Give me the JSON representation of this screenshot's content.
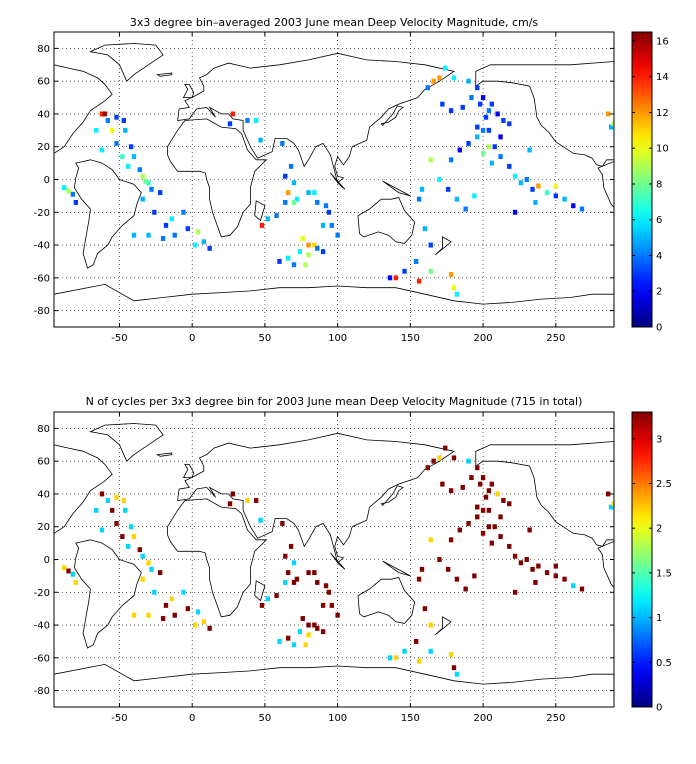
{
  "page": {
    "background": "#ffffff"
  },
  "chart_data": [
    {
      "id": "velocity",
      "type": "heatmap",
      "title": "3x3 degree bin–averaged 2003 June mean Deep Velocity Magnitude, cm/s",
      "xlabel": "",
      "ylabel": "",
      "xlim": [
        -95,
        290
      ],
      "ylim": [
        -90,
        90
      ],
      "x_ticks": [
        -50,
        0,
        50,
        100,
        150,
        200,
        250
      ],
      "y_ticks": [
        -80,
        -60,
        -40,
        -20,
        0,
        20,
        40,
        60,
        80
      ],
      "grid": "dotted",
      "colormap": "jet",
      "colorbar": {
        "min": 0,
        "max": 16.5,
        "ticks": [
          0,
          2,
          4,
          6,
          8,
          10,
          12,
          14,
          16
        ]
      },
      "bin_size_deg": 3,
      "cells": [
        [
          -88,
          -5,
          6
        ],
        [
          -85,
          -7,
          9
        ],
        [
          -82,
          -9,
          4
        ],
        [
          -80,
          -14,
          3
        ],
        [
          -62,
          40,
          14
        ],
        [
          -60,
          40,
          16
        ],
        [
          -58,
          36,
          4
        ],
        [
          -52,
          38,
          3
        ],
        [
          -66,
          30,
          6
        ],
        [
          -55,
          30,
          10
        ],
        [
          -47,
          36,
          3
        ],
        [
          -46,
          30,
          5
        ],
        [
          -62,
          18,
          6
        ],
        [
          -52,
          22,
          4
        ],
        [
          -42,
          20,
          3
        ],
        [
          -48,
          14,
          7
        ],
        [
          -40,
          14,
          5
        ],
        [
          -44,
          8,
          6
        ],
        [
          -36,
          6,
          4
        ],
        [
          -34,
          2,
          9
        ],
        [
          -30,
          -2,
          7
        ],
        [
          -28,
          -6,
          4
        ],
        [
          -22,
          -8,
          3
        ],
        [
          -34,
          -12,
          5
        ],
        [
          -26,
          -20,
          3
        ],
        [
          -18,
          -28,
          3
        ],
        [
          -14,
          -24,
          6
        ],
        [
          -12,
          -34,
          4
        ],
        [
          -20,
          -36,
          4
        ],
        [
          -40,
          -34,
          5
        ],
        [
          -30,
          -34,
          5
        ],
        [
          -6,
          -20,
          4
        ],
        [
          -3,
          -30,
          3
        ],
        [
          2,
          -40,
          6
        ],
        [
          8,
          -38,
          5
        ],
        [
          4,
          -32,
          9
        ],
        [
          12,
          -42,
          3
        ],
        [
          -32,
          -1,
          8
        ],
        [
          28,
          40,
          14
        ],
        [
          26,
          34,
          3
        ],
        [
          38,
          36,
          4
        ],
        [
          44,
          36,
          6
        ],
        [
          47,
          24,
          5
        ],
        [
          62,
          22,
          4
        ],
        [
          64,
          2,
          3
        ],
        [
          68,
          8,
          4
        ],
        [
          70,
          -2,
          5
        ],
        [
          66,
          -8,
          12
        ],
        [
          72,
          -12,
          6
        ],
        [
          48,
          -28,
          14
        ],
        [
          52,
          -24,
          5
        ],
        [
          58,
          -22,
          4
        ],
        [
          64,
          -14,
          4
        ],
        [
          60,
          -50,
          3
        ],
        [
          66,
          -48,
          6
        ],
        [
          70,
          -52,
          4
        ],
        [
          74,
          -44,
          6
        ],
        [
          76,
          -36,
          10
        ],
        [
          80,
          -40,
          12
        ],
        [
          84,
          -40,
          11
        ],
        [
          80,
          -46,
          9
        ],
        [
          86,
          -42,
          4
        ],
        [
          90,
          -44,
          3
        ],
        [
          78,
          -52,
          9
        ],
        [
          80,
          -8,
          5
        ],
        [
          86,
          -14,
          4
        ],
        [
          92,
          -16,
          4
        ],
        [
          94,
          -20,
          3
        ],
        [
          90,
          -28,
          5
        ],
        [
          96,
          -28,
          4
        ],
        [
          100,
          -34,
          4
        ],
        [
          70,
          -14,
          8
        ],
        [
          84,
          -8,
          6
        ],
        [
          136,
          -60,
          2
        ],
        [
          140,
          -60,
          14
        ],
        [
          146,
          -56,
          3
        ],
        [
          156,
          -62,
          14
        ],
        [
          164,
          -56,
          8
        ],
        [
          178,
          -58,
          12
        ],
        [
          180,
          -66,
          10
        ],
        [
          182,
          -70,
          6
        ],
        [
          154,
          -50,
          4
        ],
        [
          164,
          -40,
          3
        ],
        [
          160,
          -30,
          5
        ],
        [
          156,
          -12,
          4
        ],
        [
          158,
          -6,
          5
        ],
        [
          164,
          12,
          9
        ],
        [
          170,
          0,
          6
        ],
        [
          176,
          -6,
          3
        ],
        [
          182,
          -12,
          5
        ],
        [
          188,
          -18,
          4
        ],
        [
          194,
          -10,
          6
        ],
        [
          178,
          12,
          4
        ],
        [
          184,
          18,
          2
        ],
        [
          190,
          22,
          3
        ],
        [
          196,
          26,
          5
        ],
        [
          200,
          30,
          4
        ],
        [
          202,
          38,
          3
        ],
        [
          206,
          46,
          3
        ],
        [
          200,
          50,
          2
        ],
        [
          196,
          56,
          3
        ],
        [
          190,
          60,
          5
        ],
        [
          180,
          62,
          6
        ],
        [
          174,
          68,
          6
        ],
        [
          170,
          62,
          12
        ],
        [
          166,
          60,
          12
        ],
        [
          162,
          56,
          4
        ],
        [
          172,
          46,
          3
        ],
        [
          178,
          42,
          3
        ],
        [
          186,
          44,
          3
        ],
        [
          192,
          50,
          4
        ],
        [
          198,
          46,
          3
        ],
        [
          204,
          42,
          4
        ],
        [
          210,
          40,
          2
        ],
        [
          214,
          36,
          3
        ],
        [
          218,
          34,
          3
        ],
        [
          204,
          30,
          3
        ],
        [
          196,
          32,
          3
        ],
        [
          212,
          26,
          2
        ],
        [
          208,
          20,
          3
        ],
        [
          212,
          14,
          4
        ],
        [
          218,
          8,
          3
        ],
        [
          222,
          2,
          6
        ],
        [
          226,
          -2,
          5
        ],
        [
          230,
          0,
          4
        ],
        [
          234,
          -6,
          3
        ],
        [
          238,
          -4,
          12
        ],
        [
          244,
          -8,
          7
        ],
        [
          236,
          -14,
          5
        ],
        [
          250,
          -10,
          3
        ],
        [
          256,
          -12,
          5
        ],
        [
          262,
          -16,
          2
        ],
        [
          268,
          -18,
          4
        ],
        [
          200,
          16,
          8
        ],
        [
          204,
          20,
          9
        ],
        [
          206,
          10,
          5
        ],
        [
          232,
          18,
          5
        ],
        [
          222,
          -20,
          2
        ],
        [
          250,
          -4,
          10
        ],
        [
          286,
          40,
          12
        ],
        [
          288,
          32,
          5
        ],
        [
          290,
          34,
          9
        ]
      ]
    },
    {
      "id": "cycles",
      "type": "heatmap",
      "title": "N of cycles per 3x3 degree bin for 2003 June mean Deep Velocity Magnitude (715 in total)",
      "xlabel": "",
      "ylabel": "",
      "xlim": [
        -95,
        290
      ],
      "ylim": [
        -90,
        90
      ],
      "x_ticks": [
        -50,
        0,
        50,
        100,
        150,
        200,
        250
      ],
      "y_ticks": [
        -80,
        -60,
        -40,
        -20,
        0,
        20,
        40,
        60,
        80
      ],
      "grid": "dotted",
      "colormap": "jet",
      "colorbar": {
        "min": 0,
        "max": 3.3,
        "ticks": [
          0,
          0.5,
          1,
          1.5,
          2,
          2.5,
          3
        ]
      },
      "bin_size_deg": 3,
      "cells": [
        [
          -88,
          -5,
          2.2
        ],
        [
          -85,
          -7,
          3.3
        ],
        [
          -82,
          -9,
          1.1
        ],
        [
          -80,
          -14,
          2.2
        ],
        [
          -62,
          40,
          3.3
        ],
        [
          -58,
          36,
          1.1
        ],
        [
          -52,
          38,
          2.2
        ],
        [
          -66,
          30,
          1.1
        ],
        [
          -55,
          30,
          3.3
        ],
        [
          -47,
          36,
          2.2
        ],
        [
          -46,
          30,
          1.1
        ],
        [
          -62,
          18,
          1.1
        ],
        [
          -52,
          22,
          3.3
        ],
        [
          -42,
          20,
          1.1
        ],
        [
          -48,
          14,
          3.3
        ],
        [
          -40,
          14,
          2.2
        ],
        [
          -44,
          8,
          1.1
        ],
        [
          -36,
          6,
          3.3
        ],
        [
          -34,
          2,
          1.1
        ],
        [
          -30,
          -2,
          2.2
        ],
        [
          -28,
          -6,
          1.1
        ],
        [
          -22,
          -8,
          3.3
        ],
        [
          -34,
          -12,
          2.2
        ],
        [
          -26,
          -20,
          1.1
        ],
        [
          -18,
          -28,
          3.3
        ],
        [
          -14,
          -24,
          2.2
        ],
        [
          -12,
          -34,
          3.3
        ],
        [
          -20,
          -36,
          3.3
        ],
        [
          -40,
          -34,
          2.2
        ],
        [
          -30,
          -34,
          2.2
        ],
        [
          -6,
          -20,
          1.1
        ],
        [
          -3,
          -30,
          3.3
        ],
        [
          2,
          -40,
          2.2
        ],
        [
          8,
          -38,
          2.2
        ],
        [
          4,
          -32,
          1.1
        ],
        [
          12,
          -42,
          3.3
        ],
        [
          28,
          40,
          3.3
        ],
        [
          26,
          34,
          3.3
        ],
        [
          38,
          36,
          2.2
        ],
        [
          44,
          36,
          3.3
        ],
        [
          47,
          24,
          1.1
        ],
        [
          62,
          22,
          3.3
        ],
        [
          64,
          2,
          3.3
        ],
        [
          68,
          8,
          3.3
        ],
        [
          70,
          -2,
          1.1
        ],
        [
          66,
          -8,
          3.3
        ],
        [
          72,
          -12,
          3.3
        ],
        [
          48,
          -28,
          3.3
        ],
        [
          52,
          -24,
          1.1
        ],
        [
          58,
          -22,
          3.3
        ],
        [
          64,
          -14,
          1.1
        ],
        [
          60,
          -50,
          1.1
        ],
        [
          66,
          -48,
          3.3
        ],
        [
          70,
          -52,
          1.1
        ],
        [
          74,
          -44,
          1.1
        ],
        [
          76,
          -36,
          3.3
        ],
        [
          80,
          -40,
          3.3
        ],
        [
          84,
          -40,
          3.3
        ],
        [
          80,
          -46,
          2.2
        ],
        [
          86,
          -42,
          3.3
        ],
        [
          90,
          -44,
          3.3
        ],
        [
          78,
          -52,
          2.2
        ],
        [
          80,
          -8,
          3.3
        ],
        [
          86,
          -14,
          3.3
        ],
        [
          92,
          -16,
          3.3
        ],
        [
          94,
          -20,
          3.3
        ],
        [
          90,
          -28,
          3.3
        ],
        [
          96,
          -28,
          3.3
        ],
        [
          100,
          -34,
          3.3
        ],
        [
          70,
          -14,
          3.3
        ],
        [
          84,
          -8,
          3.3
        ],
        [
          136,
          -60,
          1.1
        ],
        [
          140,
          -60,
          2.2
        ],
        [
          146,
          -56,
          1.1
        ],
        [
          156,
          -62,
          2.2
        ],
        [
          164,
          -56,
          1.1
        ],
        [
          178,
          -58,
          2.2
        ],
        [
          180,
          -66,
          3.3
        ],
        [
          182,
          -70,
          1.1
        ],
        [
          154,
          -50,
          3.3
        ],
        [
          164,
          -40,
          2.2
        ],
        [
          160,
          -30,
          3.3
        ],
        [
          156,
          -12,
          3.3
        ],
        [
          158,
          -6,
          3.3
        ],
        [
          164,
          12,
          2.2
        ],
        [
          170,
          0,
          3.3
        ],
        [
          176,
          -6,
          3.3
        ],
        [
          182,
          -12,
          3.3
        ],
        [
          188,
          -18,
          3.3
        ],
        [
          194,
          -10,
          3.3
        ],
        [
          178,
          12,
          3.3
        ],
        [
          184,
          18,
          3.3
        ],
        [
          190,
          22,
          3.3
        ],
        [
          196,
          26,
          3.3
        ],
        [
          200,
          30,
          3.3
        ],
        [
          202,
          38,
          3.3
        ],
        [
          206,
          46,
          3.3
        ],
        [
          200,
          50,
          3.3
        ],
        [
          196,
          56,
          3.3
        ],
        [
          190,
          60,
          1.1
        ],
        [
          180,
          62,
          3.3
        ],
        [
          174,
          68,
          3.3
        ],
        [
          170,
          62,
          2.2
        ],
        [
          166,
          60,
          3.3
        ],
        [
          162,
          56,
          3.3
        ],
        [
          172,
          46,
          3.3
        ],
        [
          178,
          42,
          3.3
        ],
        [
          186,
          44,
          3.3
        ],
        [
          192,
          50,
          3.3
        ],
        [
          198,
          46,
          3.3
        ],
        [
          204,
          42,
          3.3
        ],
        [
          210,
          40,
          2.2
        ],
        [
          214,
          36,
          3.3
        ],
        [
          218,
          34,
          3.3
        ],
        [
          204,
          30,
          3.3
        ],
        [
          196,
          32,
          3.3
        ],
        [
          212,
          26,
          3.3
        ],
        [
          208,
          20,
          3.3
        ],
        [
          212,
          14,
          3.3
        ],
        [
          218,
          8,
          3.3
        ],
        [
          222,
          2,
          3.3
        ],
        [
          226,
          -2,
          3.3
        ],
        [
          230,
          0,
          3.3
        ],
        [
          234,
          -6,
          3.3
        ],
        [
          238,
          -4,
          3.3
        ],
        [
          244,
          -8,
          3.3
        ],
        [
          236,
          -14,
          3.3
        ],
        [
          250,
          -10,
          3.3
        ],
        [
          256,
          -12,
          3.3
        ],
        [
          262,
          -16,
          1.1
        ],
        [
          268,
          -18,
          3.3
        ],
        [
          200,
          16,
          3.3
        ],
        [
          204,
          20,
          3.3
        ],
        [
          206,
          10,
          3.3
        ],
        [
          232,
          18,
          3.3
        ],
        [
          222,
          -20,
          3.3
        ],
        [
          250,
          -4,
          3.3
        ],
        [
          286,
          40,
          3.3
        ],
        [
          288,
          32,
          1.1
        ],
        [
          290,
          34,
          2.2
        ]
      ]
    }
  ]
}
